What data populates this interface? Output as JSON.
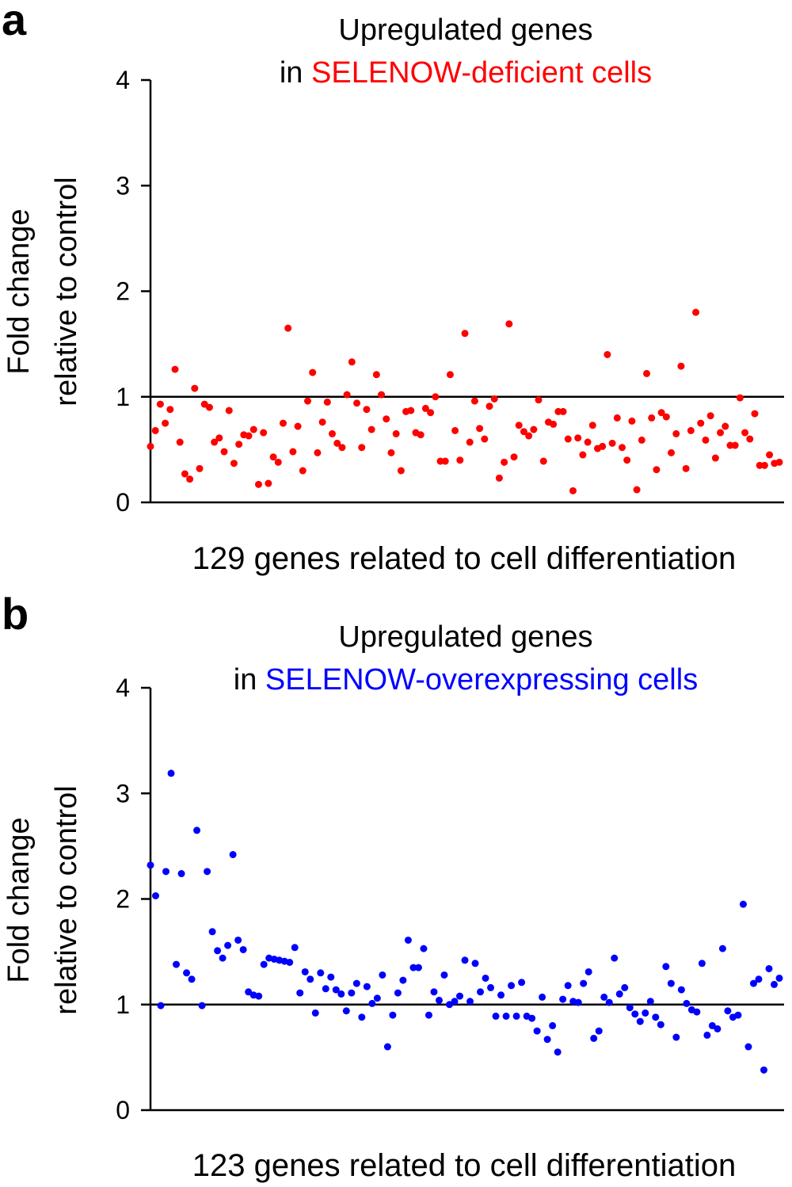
{
  "chart_data": [
    {
      "panel": "a",
      "type": "scatter",
      "title_line1": "Upregulated genes",
      "title_line2_prefix": "in",
      "title_line2_highlight": "SELENOW-deficient cells",
      "highlight_color": "#ff0000",
      "point_color": "#ff0000",
      "xlabel": "129 genes related to cell differentiation",
      "ylabel_line1": "Fold change",
      "ylabel_line2": "relative to control",
      "ylim": [
        0,
        4
      ],
      "yticks": [
        0,
        1,
        2,
        3,
        4
      ],
      "reference_line": 1,
      "n_genes": 129,
      "values": [
        0.53,
        0.68,
        0.93,
        0.75,
        0.88,
        1.26,
        0.57,
        0.27,
        0.22,
        1.08,
        0.32,
        0.93,
        0.9,
        0.57,
        0.61,
        0.48,
        0.87,
        0.37,
        0.55,
        0.64,
        0.63,
        0.69,
        0.17,
        0.66,
        0.18,
        0.43,
        0.38,
        0.75,
        1.65,
        0.48,
        0.72,
        0.3,
        0.96,
        1.23,
        0.47,
        0.76,
        0.95,
        0.65,
        0.56,
        0.52,
        1.02,
        1.33,
        0.94,
        0.52,
        0.88,
        0.69,
        1.21,
        1.02,
        0.79,
        0.47,
        0.65,
        0.3,
        0.86,
        0.87,
        0.66,
        0.64,
        0.89,
        0.85,
        1.0,
        0.39,
        0.39,
        1.21,
        0.68,
        0.4,
        1.6,
        0.57,
        0.96,
        0.7,
        0.6,
        0.91,
        0.98,
        0.23,
        0.38,
        1.69,
        0.43,
        0.73,
        0.67,
        0.63,
        0.69,
        0.97,
        0.39,
        0.76,
        0.74,
        0.86,
        0.86,
        0.6,
        0.11,
        0.61,
        0.45,
        0.57,
        0.73,
        0.51,
        0.53,
        1.4,
        0.56,
        0.8,
        0.52,
        0.4,
        0.77,
        0.12,
        0.59,
        1.22,
        0.8,
        0.31,
        0.85,
        0.81,
        0.47,
        0.65,
        1.29,
        0.32,
        0.68,
        1.8,
        0.75,
        0.59,
        0.82,
        0.42,
        0.66,
        0.72,
        0.54,
        0.54,
        0.99,
        0.66,
        0.6,
        0.84,
        0.35,
        0.35,
        0.45,
        0.37,
        0.38
      ]
    },
    {
      "panel": "b",
      "type": "scatter",
      "title_line1": "Upregulated genes",
      "title_line2_prefix": "in",
      "title_line2_highlight": "SELENOW-overexpressing cells",
      "highlight_color": "#0000ff",
      "point_color": "#0000ff",
      "xlabel": "123 genes related to cell differentiation",
      "ylabel_line1": "Fold change",
      "ylabel_line2": "relative to control",
      "ylim": [
        0,
        4
      ],
      "yticks": [
        0,
        1,
        2,
        3,
        4
      ],
      "reference_line": 1,
      "n_genes": 123,
      "values": [
        2.32,
        2.03,
        0.99,
        2.26,
        3.19,
        1.38,
        2.24,
        1.3,
        1.24,
        2.65,
        0.99,
        2.26,
        1.69,
        1.51,
        1.44,
        1.56,
        2.42,
        1.61,
        1.52,
        1.12,
        1.09,
        1.08,
        1.38,
        1.44,
        1.43,
        1.42,
        1.41,
        1.4,
        1.54,
        1.11,
        1.31,
        1.24,
        0.92,
        1.3,
        1.15,
        1.26,
        1.14,
        1.1,
        0.94,
        1.11,
        1.2,
        0.88,
        1.17,
        1.01,
        1.06,
        1.28,
        0.6,
        0.9,
        1.11,
        1.23,
        1.61,
        1.35,
        1.35,
        1.53,
        0.9,
        1.12,
        1.04,
        1.28,
        1.0,
        1.03,
        1.08,
        1.42,
        1.03,
        1.39,
        1.12,
        1.25,
        1.16,
        0.89,
        1.09,
        0.89,
        1.18,
        0.89,
        1.21,
        0.89,
        0.87,
        0.75,
        1.07,
        0.67,
        0.8,
        0.55,
        1.05,
        1.18,
        1.03,
        1.02,
        1.2,
        1.31,
        0.68,
        0.75,
        1.07,
        1.02,
        1.44,
        1.1,
        1.16,
        0.97,
        0.91,
        0.84,
        0.92,
        1.03,
        0.88,
        0.81,
        1.36,
        1.2,
        0.69,
        1.14,
        1.01,
        0.95,
        0.93,
        1.39,
        0.71,
        0.8,
        0.77,
        1.53,
        0.94,
        0.88,
        0.9,
        1.95,
        0.6,
        1.2,
        1.24,
        0.38,
        1.34,
        1.19,
        1.25
      ]
    }
  ]
}
